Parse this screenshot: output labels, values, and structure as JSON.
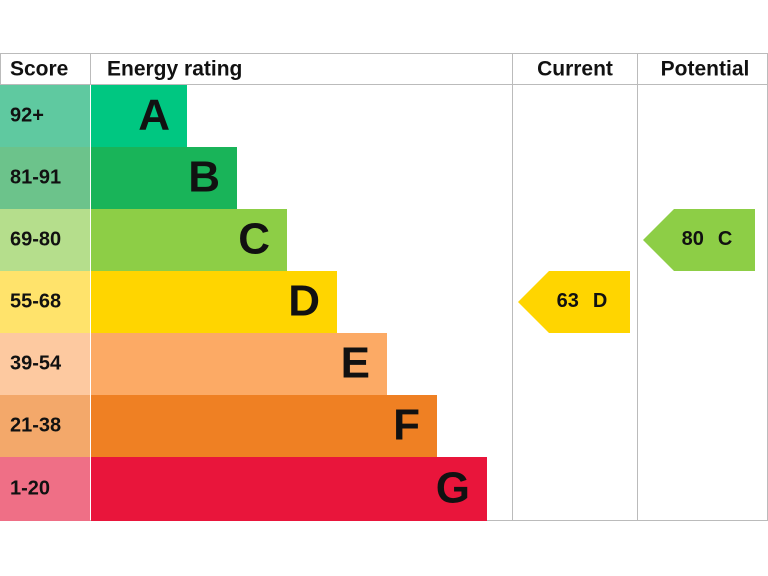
{
  "header": {
    "score": "Score",
    "energy_rating": "Energy rating",
    "current": "Current",
    "potential": "Potential"
  },
  "bands": [
    {
      "score": "92+",
      "rating": "A",
      "color": "#00c781",
      "score_color": "#5fc9a0"
    },
    {
      "score": "81-91",
      "rating": "B",
      "color": "#19b459",
      "score_color": "#6cc38b"
    },
    {
      "score": "69-80",
      "rating": "C",
      "color": "#8dce46",
      "score_color": "#b5de8c"
    },
    {
      "score": "55-68",
      "rating": "D",
      "color": "#ffd500",
      "score_color": "#ffe36b"
    },
    {
      "score": "39-54",
      "rating": "E",
      "color": "#fcaa65",
      "score_color": "#fdc9a0"
    },
    {
      "score": "21-38",
      "rating": "F",
      "color": "#ef8023",
      "score_color": "#f3a86a"
    },
    {
      "score": "1-20",
      "rating": "G",
      "color": "#e9153b",
      "score_color": "#ef6f86"
    }
  ],
  "current": {
    "score": 63,
    "rating": "D"
  },
  "potential": {
    "score": 80,
    "rating": "C"
  }
}
